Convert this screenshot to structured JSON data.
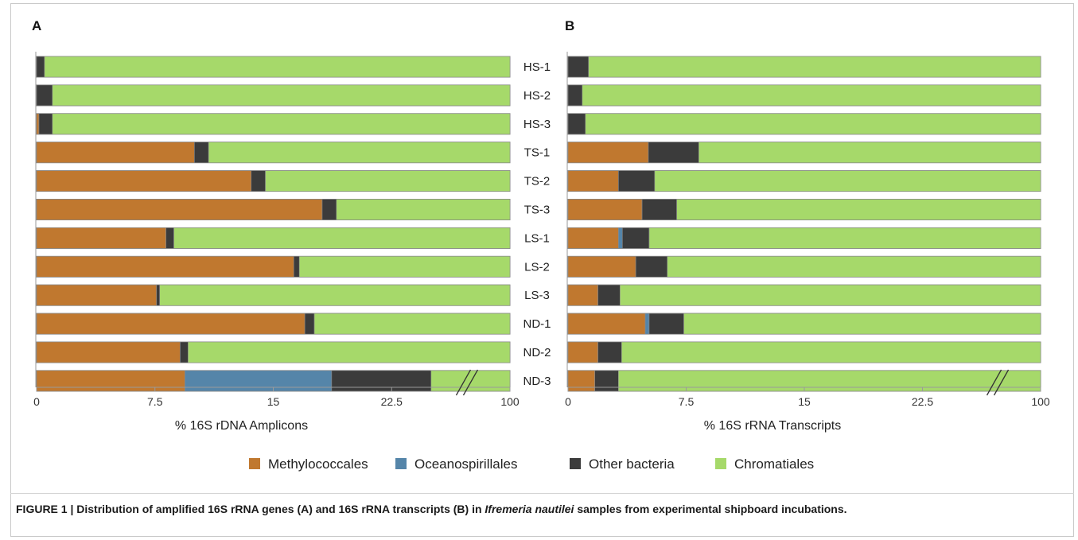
{
  "colors": {
    "Methylococcales": "#c0782f",
    "Oceanospirillales": "#5585a9",
    "Other bacteria": "#3b3b3b",
    "Chromatiales": "#a6d96a"
  },
  "chart_data": [
    {
      "type": "bar",
      "orientation": "horizontal",
      "stacked": true,
      "panel": "A",
      "categories": [
        "HS-1",
        "HS-2",
        "HS-3",
        "TS-1",
        "TS-2",
        "TS-3",
        "LS-1",
        "LS-2",
        "LS-3",
        "ND-1",
        "ND-2",
        "ND-3"
      ],
      "series": [
        {
          "name": "Methylococcales",
          "values": [
            0,
            0,
            0.15,
            10.0,
            13.6,
            18.1,
            8.2,
            16.3,
            7.6,
            17.0,
            9.1,
            9.4
          ]
        },
        {
          "name": "Oceanospirillales",
          "values": [
            0,
            0,
            0,
            0,
            0,
            0,
            0,
            0,
            0,
            0,
            0,
            9.3
          ]
        },
        {
          "name": "Other bacteria",
          "values": [
            0.5,
            1.0,
            0.85,
            0.9,
            0.9,
            0.9,
            0.5,
            0.35,
            0.2,
            0.6,
            0.5,
            6.3
          ]
        },
        {
          "name": "Chromatiales",
          "values": [
            99.5,
            99.0,
            99.0,
            89.1,
            85.5,
            81.0,
            91.3,
            83.35,
            92.2,
            82.4,
            90.4,
            75.0
          ]
        }
      ],
      "xlabel": "% 16S rDNA Amplicons",
      "xticks": [
        "0",
        "7.5",
        "15",
        "22.5",
        "100"
      ],
      "axis_break": "between 22.5 and 100",
      "xlim": [
        0,
        100
      ]
    },
    {
      "type": "bar",
      "orientation": "horizontal",
      "stacked": true,
      "panel": "B",
      "categories": [
        "HS-1",
        "HS-2",
        "HS-3",
        "TS-1",
        "TS-2",
        "TS-3",
        "LS-1",
        "LS-2",
        "LS-3",
        "ND-1",
        "ND-2",
        "ND-3"
      ],
      "series": [
        {
          "name": "Methylococcales",
          "values": [
            0,
            0,
            0,
            5.1,
            3.2,
            4.7,
            3.2,
            4.3,
            1.9,
            4.9,
            1.9,
            1.7
          ]
        },
        {
          "name": "Oceanospirillales",
          "values": [
            0,
            0,
            0,
            0,
            0,
            0,
            0.25,
            0,
            0,
            0.25,
            0,
            0
          ]
        },
        {
          "name": "Other bacteria",
          "values": [
            1.3,
            0.9,
            1.1,
            3.2,
            2.3,
            2.2,
            1.7,
            2.0,
            1.4,
            2.2,
            1.5,
            1.5
          ]
        },
        {
          "name": "Chromatiales",
          "values": [
            98.7,
            99.1,
            98.9,
            91.7,
            94.5,
            93.1,
            94.85,
            93.7,
            96.7,
            92.65,
            96.6,
            96.8
          ]
        }
      ],
      "xlabel": "% 16S rRNA Transcripts",
      "xticks": [
        "0",
        "7.5",
        "15",
        "22.5",
        "100"
      ],
      "axis_break": "between 22.5 and 100",
      "xlim": [
        0,
        100
      ]
    }
  ],
  "legend": [
    "Methylococcales",
    "Oceanospirillales",
    "Other bacteria",
    "Chromatiales"
  ],
  "caption": {
    "prefix": "FIGURE 1 | Distribution of amplified 16S rRNA genes (A) and 16S rRNA transcripts (B) in ",
    "species": "Ifremeria nautilei",
    "suffix": " samples from experimental shipboard incubations."
  }
}
